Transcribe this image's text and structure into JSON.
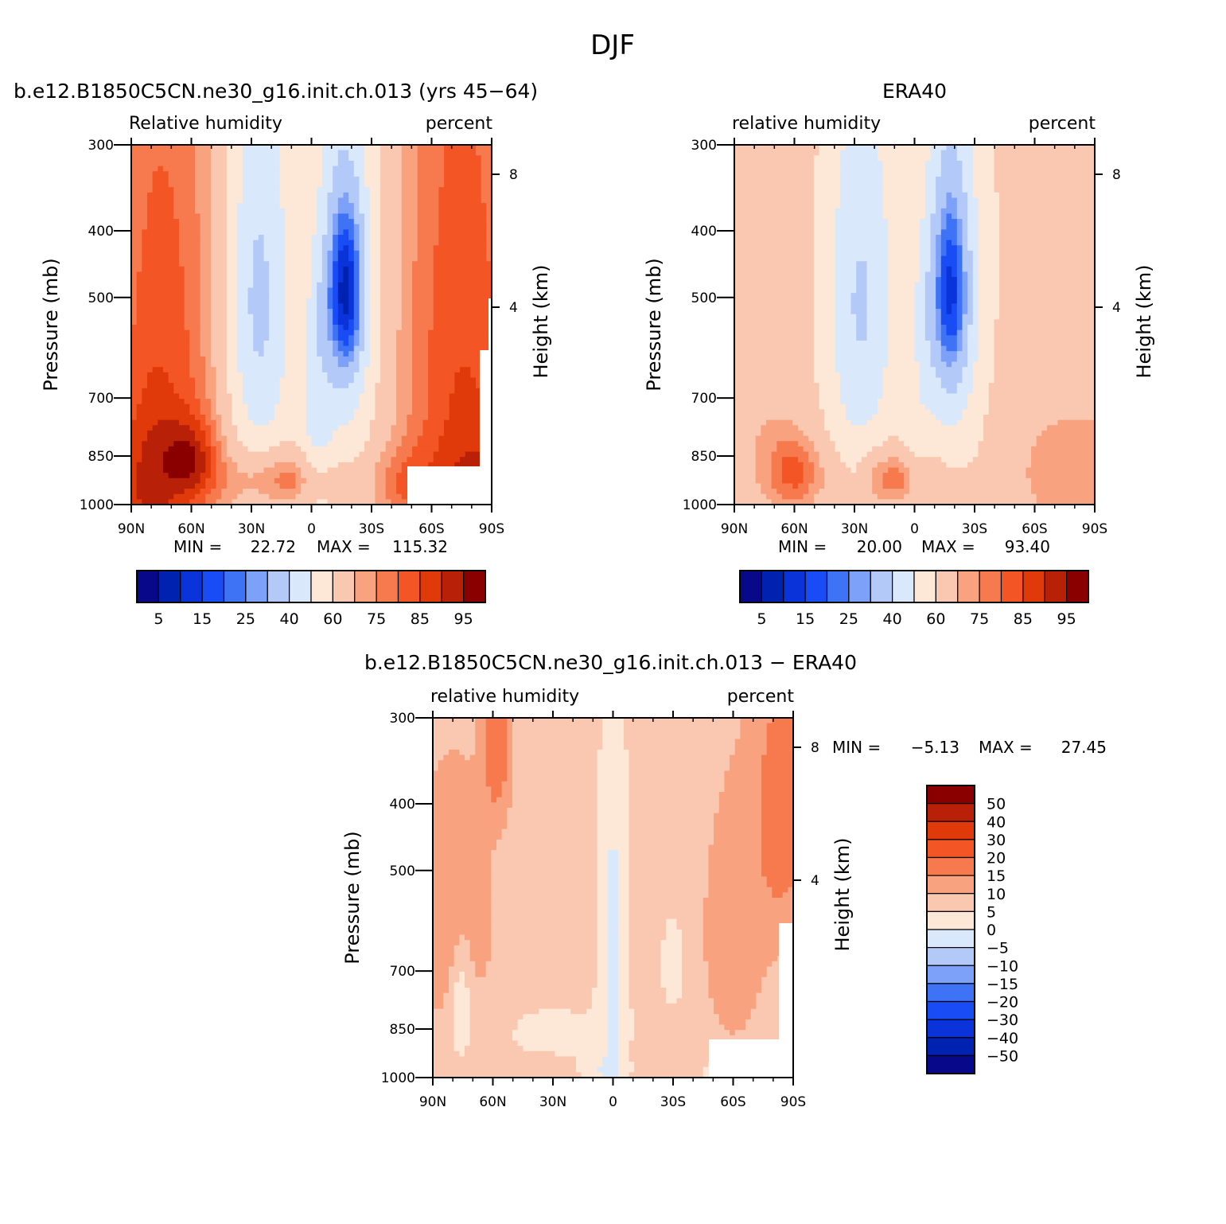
{
  "suptitle": "DJF",
  "colors": {
    "diverging": [
      "#08088a",
      "#0022b0",
      "#0a33d9",
      "#1a4cf5",
      "#3f73f5",
      "#7da0f8",
      "#b3c9f8",
      "#d9e8fb",
      "#fde8d8",
      "#fac8b0",
      "#f8a27f",
      "#f67a4e",
      "#f45524",
      "#e13a0a",
      "#b82008",
      "#8a0000"
    ],
    "missing": "#ffffff"
  },
  "chart_data": [
    {
      "id": "model",
      "type": "heatmap",
      "title": "b.e12.B1850C5CN.ne30_g16.init.ch.013 (yrs 45-64)",
      "left_label": "Relative humidity",
      "right_label": "percent",
      "xlabel": "",
      "ylabel": "Pressure (mb)",
      "ylabel_right": "Height (km)",
      "x_ticks": [
        "90N",
        "60N",
        "30N",
        "0",
        "30S",
        "60S",
        "90S"
      ],
      "y_ticks": [
        "300",
        "400",
        "500",
        "700",
        "850",
        "1000"
      ],
      "y_ticks_right": [
        "8",
        "4"
      ],
      "y_scale": "log",
      "min_label": "MIN =",
      "min_value": "22.72",
      "max_label": "MAX =",
      "max_value": "115.32",
      "levels": [
        5,
        10,
        15,
        20,
        25,
        30,
        40,
        50,
        60,
        70,
        75,
        80,
        85,
        90,
        95
      ],
      "colorbar_labels": [
        "5",
        "15",
        "25",
        "40",
        "60",
        "75",
        "85",
        "95"
      ],
      "colorbar_orientation": "horizontal"
    },
    {
      "id": "obs",
      "type": "heatmap",
      "title": "ERA40",
      "left_label": "relative humidity",
      "right_label": "percent",
      "xlabel": "",
      "ylabel": "Pressure (mb)",
      "ylabel_right": "Height (km)",
      "x_ticks": [
        "90N",
        "60N",
        "30N",
        "0",
        "30S",
        "60S",
        "90S"
      ],
      "y_ticks": [
        "300",
        "400",
        "500",
        "700",
        "850",
        "1000"
      ],
      "y_ticks_right": [
        "8",
        "4"
      ],
      "y_scale": "log",
      "min_label": "MIN =",
      "min_value": "20.00",
      "max_label": "MAX =",
      "max_value": "93.40",
      "levels": [
        5,
        10,
        15,
        20,
        25,
        30,
        40,
        50,
        60,
        70,
        75,
        80,
        85,
        90,
        95
      ],
      "colorbar_labels": [
        "5",
        "15",
        "25",
        "40",
        "60",
        "75",
        "85",
        "95"
      ],
      "colorbar_orientation": "horizontal"
    },
    {
      "id": "diff",
      "type": "heatmap",
      "title": "b.e12.B1850C5CN.ne30_g16.init.ch.013 - ERA40",
      "left_label": "relative humidity",
      "right_label": "percent",
      "xlabel": "",
      "ylabel": "Pressure (mb)",
      "ylabel_right": "Height (km)",
      "x_ticks": [
        "90N",
        "60N",
        "30N",
        "0",
        "30S",
        "60S",
        "90S"
      ],
      "y_ticks": [
        "300",
        "400",
        "500",
        "700",
        "850",
        "1000"
      ],
      "y_ticks_right": [
        "8",
        "4"
      ],
      "y_scale": "log",
      "min_label": "MIN =",
      "min_value": "-5.13",
      "max_label": "MAX =",
      "max_value": "27.45",
      "levels": [
        -50,
        -40,
        -30,
        -20,
        -15,
        -10,
        -5,
        0,
        5,
        10,
        15,
        20,
        30,
        40,
        50
      ],
      "colorbar_labels": [
        "50",
        "40",
        "30",
        "20",
        "15",
        "10",
        "5",
        "0",
        "-5",
        "-10",
        "-15",
        "-20",
        "-30",
        "-40",
        "-50"
      ],
      "colorbar_orientation": "vertical"
    }
  ]
}
